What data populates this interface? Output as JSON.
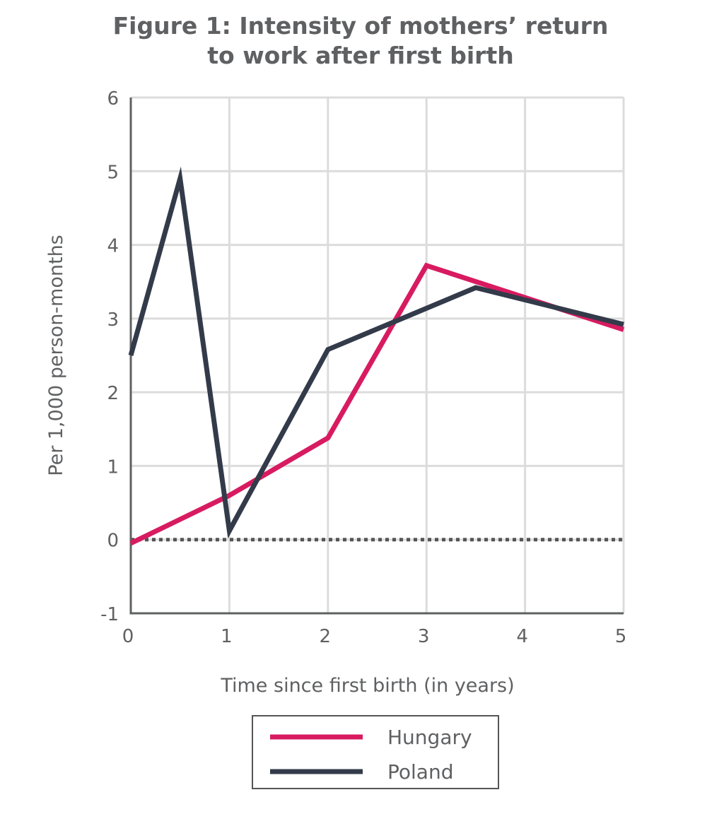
{
  "chart_data": {
    "type": "line",
    "title_lines": [
      "Figure 1: Intensity of mothers’ return",
      "to work after first birth"
    ],
    "xlabel": "Time since first birth (in years)",
    "ylabel": "Per 1,000 person-months",
    "xlim": [
      0,
      5
    ],
    "ylim": [
      -1,
      6
    ],
    "x_ticks": [
      "0",
      "1",
      "2",
      "3",
      "4",
      "5"
    ],
    "y_ticks": [
      "-1",
      "0",
      "1",
      "2",
      "3",
      "4",
      "5",
      "6"
    ],
    "grid": true,
    "legend_position": "bottom-center",
    "reference_line": {
      "y": 0,
      "style": "dotted"
    },
    "series": [
      {
        "name": "Hungary",
        "color": "#d81b60",
        "points": [
          [
            0,
            -0.05
          ],
          [
            1,
            0.6
          ],
          [
            2,
            1.38
          ],
          [
            3,
            3.72
          ],
          [
            5,
            2.85
          ]
        ]
      },
      {
        "name": "Poland",
        "color": "#333b4a",
        "points": [
          [
            0,
            2.5
          ],
          [
            0.5,
            4.9
          ],
          [
            1,
            0.12
          ],
          [
            2,
            2.58
          ],
          [
            3.5,
            3.42
          ],
          [
            5,
            2.92
          ]
        ]
      }
    ]
  },
  "colors": {
    "text": "#5f6062",
    "axis": "#5f6062",
    "grid": "#dcdcdc",
    "zero_line": "#555555"
  }
}
